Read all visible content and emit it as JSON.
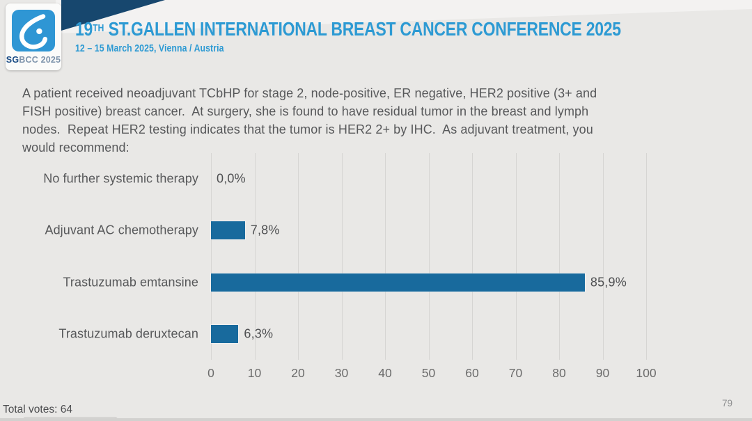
{
  "header": {
    "logo": {
      "icon": "sgbcc-breast-logo",
      "badge_strong": "SG",
      "badge_rest": "BCC 2025"
    },
    "title_number": "19",
    "title_sup": "TH",
    "title_rest": " ST.GALLEN INTERNATIONAL BREAST CANCER CONFERENCE 2025",
    "subtitle": "12 – 15 March 2025, Vienna / Austria"
  },
  "question": {
    "lines": [
      "A patient received neoadjuvant TCbHP for stage 2, node-positive, ER negative, HER2 positive (3+ and",
      "FISH positive) breast cancer.  At surgery, she is found to have residual tumor in the breast and lymph",
      "nodes.  Repeat HER2 testing indicates that the tumor is HER2 2+ by IHC.  As adjuvant treatment, you",
      "would recommend:"
    ]
  },
  "chart_data": {
    "type": "bar",
    "orientation": "horizontal",
    "categories": [
      "No further systemic therapy",
      "Adjuvant AC chemotherapy",
      "Trastuzumab emtansine",
      "Trastuzumab deruxtecan"
    ],
    "values": [
      0.0,
      7.8,
      85.9,
      6.3
    ],
    "value_labels": [
      "0,0%",
      "7,8%",
      "85,9%",
      "6,3%"
    ],
    "title": "",
    "xlabel": "",
    "ylabel": "",
    "xlim": [
      0,
      100
    ],
    "x_ticks": [
      0,
      10,
      20,
      30,
      40,
      50,
      60,
      70,
      80,
      90,
      100
    ],
    "grid": true,
    "legend": false,
    "bar_color": "#186a9d"
  },
  "footer": {
    "total_votes": "Total votes: 64",
    "page_number": "79"
  },
  "colors": {
    "accent_blue": "#2d9ad3",
    "navy": "#17476e",
    "bar_blue": "#186a9d",
    "background": "#e9e8e6",
    "text_gray": "#57585a"
  }
}
